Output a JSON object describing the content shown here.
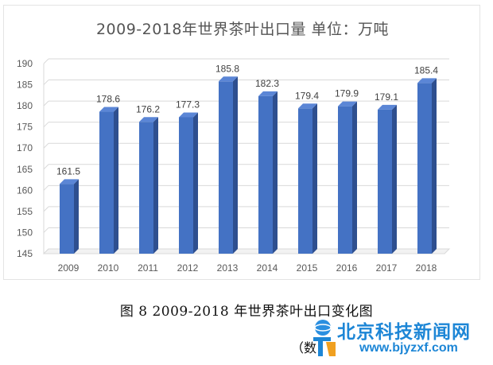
{
  "chart_data": {
    "type": "bar",
    "title": "2009-2018年世界茶叶出口量    单位：万吨",
    "categories": [
      "2009",
      "2010",
      "2011",
      "2012",
      "2013",
      "2014",
      "2015",
      "2016",
      "2017",
      "2018"
    ],
    "values": [
      161.5,
      178.6,
      176.2,
      177.3,
      185.8,
      182.3,
      179.4,
      179.9,
      179.1,
      185.4
    ],
    "ylim": [
      145,
      190
    ],
    "yticks": [
      145,
      150,
      155,
      160,
      165,
      170,
      175,
      180,
      185,
      190
    ],
    "grid": true,
    "legend": "none",
    "bar_color": "#4472c4"
  },
  "caption": "图 8  2009-2018 年世界茶叶出口变化图",
  "caption_sub": "（数",
  "watermark": {
    "name": "北京科技新闻网",
    "url": "www.bjyzxf.com",
    "color": "#1d86d6"
  }
}
